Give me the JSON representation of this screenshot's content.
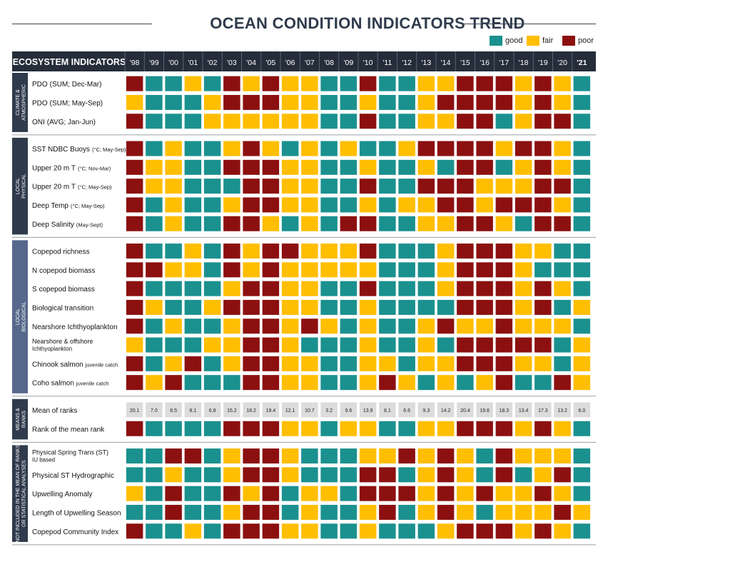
{
  "title": "OCEAN CONDITION INDICATORS TREND",
  "legend": [
    {
      "label": "good",
      "color": "#1a918f"
    },
    {
      "label": "fair",
      "color": "#ffbe00"
    },
    {
      "label": "poor",
      "color": "#8c1010"
    }
  ],
  "colors": {
    "good": "#1a918f",
    "fair": "#ffbe00",
    "poor": "#8c1010",
    "fair_light": "#ffc94d",
    "header_bg": "#252d3a",
    "group_bg": "#2f3a4c",
    "group_bg_bio": "#56698c",
    "value_bg": "#dcdcdc"
  },
  "chart_data": {
    "type": "heatmap",
    "title": "OCEAN CONDITION INDICATORS TREND",
    "header_label": "ECOSYSTEM INDICATORS",
    "years": [
      "'98",
      "'99",
      "'00",
      "'01",
      "'02",
      "'03",
      "'04",
      "'05",
      "'06",
      "'07",
      "'08",
      "'09",
      "'10",
      "'11",
      "'12",
      "'13",
      "'14",
      "'15",
      "'16",
      "'17",
      "'18",
      "'19",
      "'20",
      "'21"
    ],
    "groups": [
      {
        "label": "CLIMATE & ATMOSPHERIC",
        "rows": [
          {
            "label": "PDO",
            "note": "(SUM; Dec-Mar)",
            "note_small": false,
            "values": [
              "P",
              "G",
              "G",
              "F",
              "G",
              "P",
              "F",
              "P",
              "F",
              "F",
              "G",
              "G",
              "P",
              "G",
              "G",
              "F",
              "F",
              "P",
              "P",
              "P",
              "F",
              "P",
              "F",
              "G"
            ]
          },
          {
            "label": "PDO",
            "note": "(SUM; May-Sep)",
            "note_small": false,
            "values": [
              "F",
              "G",
              "G",
              "G",
              "F",
              "P",
              "P",
              "P",
              "F",
              "F",
              "G",
              "G",
              "F",
              "G",
              "G",
              "F",
              "P",
              "P",
              "P",
              "P",
              "F",
              "P",
              "F",
              "G"
            ]
          },
          {
            "label": "ONI",
            "note": "(AVG; Jan-Jun)",
            "note_small": false,
            "values": [
              "P",
              "G",
              "G",
              "G",
              "F",
              "F",
              "F",
              "F",
              "F",
              "F",
              "G",
              "G",
              "P",
              "G",
              "G",
              "F",
              "F",
              "P",
              "P",
              "G",
              "F",
              "P",
              "P",
              "G"
            ]
          }
        ]
      },
      {
        "label": "LOCAL PHYSICAL",
        "rows": [
          {
            "label": "SST NDBC Buoys",
            "note": "(°C; May-Sep)",
            "note_small": true,
            "values": [
              "P",
              "G",
              "F",
              "G",
              "G",
              "F",
              "P",
              "F",
              "G",
              "F",
              "G",
              "F",
              "G",
              "G",
              "F",
              "P",
              "P",
              "P",
              "P",
              "F",
              "P",
              "P",
              "F",
              "G"
            ]
          },
          {
            "label": "Upper 20 m T",
            "note": "(°C; Nov-Mar)",
            "note_small": true,
            "values": [
              "P",
              "F",
              "F",
              "G",
              "G",
              "P",
              "P",
              "P",
              "F",
              "F",
              "G",
              "G",
              "F",
              "G",
              "G",
              "F",
              "G",
              "P",
              "P",
              "G",
              "F",
              "P",
              "F",
              "G"
            ]
          },
          {
            "label": "Upper 20 m T",
            "note": "(°C; May-Sep)",
            "note_small": true,
            "values": [
              "P",
              "F",
              "F",
              "G",
              "G",
              "G",
              "P",
              "P",
              "F",
              "F",
              "G",
              "G",
              "P",
              "G",
              "G",
              "P",
              "P",
              "P",
              "F",
              "F",
              "F",
              "P",
              "P",
              "G"
            ]
          },
          {
            "label": "Deep Temp",
            "note": "(°C; May-Sep)",
            "note_small": true,
            "values": [
              "P",
              "G",
              "F",
              "G",
              "G",
              "F",
              "P",
              "P",
              "F",
              "F",
              "G",
              "G",
              "F",
              "G",
              "F",
              "F",
              "P",
              "P",
              "F",
              "P",
              "P",
              "P",
              "F",
              "G"
            ]
          },
          {
            "label": "Deep Salinity",
            "note": "(May-Sept)",
            "note_small": true,
            "values": [
              "P",
              "G",
              "F",
              "G",
              "G",
              "P",
              "P",
              "F",
              "G",
              "F",
              "G",
              "P",
              "P",
              "G",
              "G",
              "F",
              "F",
              "P",
              "P",
              "F",
              "G",
              "P",
              "P",
              "G"
            ]
          }
        ]
      },
      {
        "label": "LOCAL BIOLOGICAL",
        "rows": [
          {
            "label": "Copepod richness",
            "note": "",
            "note_small": false,
            "values": [
              "P",
              "G",
              "G",
              "F",
              "G",
              "P",
              "F",
              "P",
              "P",
              "F",
              "F",
              "F",
              "P",
              "G",
              "G",
              "G",
              "F",
              "P",
              "P",
              "P",
              "F",
              "F",
              "G",
              "G"
            ]
          },
          {
            "label": "N copepod biomass",
            "note": "",
            "note_small": false,
            "values": [
              "P",
              "P",
              "F",
              "F",
              "G",
              "P",
              "F",
              "P",
              "F",
              "F",
              "F",
              "F",
              "F",
              "G",
              "G",
              "G",
              "F",
              "P",
              "P",
              "P",
              "F",
              "G",
              "G",
              "G"
            ]
          },
          {
            "label": "S copepod biomass",
            "note": "",
            "note_small": false,
            "values": [
              "P",
              "G",
              "G",
              "G",
              "G",
              "F",
              "P",
              "P",
              "F",
              "F",
              "G",
              "G",
              "P",
              "G",
              "G",
              "G",
              "F",
              "P",
              "P",
              "P",
              "F",
              "P",
              "F",
              "G"
            ]
          },
          {
            "label": "Biological transition",
            "note": "",
            "note_small": false,
            "values": [
              "P",
              "F",
              "G",
              "G",
              "F",
              "P",
              "P",
              "P",
              "F",
              "F",
              "G",
              "G",
              "F",
              "G",
              "G",
              "G",
              "G",
              "P",
              "P",
              "P",
              "F",
              "P",
              "G",
              "F"
            ]
          },
          {
            "label": "Nearshore Ichthyoplankton",
            "note": "",
            "note_small": false,
            "values": [
              "P",
              "G",
              "F",
              "G",
              "G",
              "F",
              "P",
              "P",
              "F",
              "P",
              "F",
              "G",
              "F",
              "G",
              "G",
              "F",
              "P",
              "F",
              "F",
              "P",
              "F",
              "F",
              "F",
              "G"
            ]
          },
          {
            "label": "Nearshore & offshore",
            "note": "Ichthyoplankton",
            "note_small": true,
            "two_line": true,
            "values": [
              "F",
              "G",
              "G",
              "G",
              "F",
              "F",
              "P",
              "P",
              "F",
              "G",
              "G",
              "G",
              "F",
              "G",
              "G",
              "F",
              "G",
              "P",
              "P",
              "P",
              "P",
              "P",
              "G",
              "F"
            ]
          },
          {
            "label": "Chinook salmon",
            "note": "juvenile catch",
            "note_small": true,
            "values": [
              "P",
              "G",
              "F",
              "P",
              "G",
              "F",
              "P",
              "P",
              "F",
              "F",
              "G",
              "G",
              "F",
              "F",
              "G",
              "F",
              "F",
              "P",
              "P",
              "P",
              "F",
              "F",
              "G",
              "F"
            ]
          },
          {
            "label": "Coho salmon",
            "note": "juvenile catch",
            "note_small": true,
            "values": [
              "P",
              "F",
              "P",
              "G",
              "G",
              "G",
              "P",
              "P",
              "F",
              "F",
              "G",
              "G",
              "F",
              "P",
              "F",
              "G",
              "F",
              "G",
              "F",
              "P",
              "G",
              "G",
              "P",
              "F"
            ]
          }
        ]
      },
      {
        "label": "MEANS & RANKS",
        "rows": [
          {
            "label": "Mean of ranks",
            "note": "",
            "note_small": false,
            "numeric": [
              "20.1",
              "7.0",
              "8.5",
              "8.1",
              "6.8",
              "15.2",
              "18.2",
              "19.4",
              "12.1",
              "10.7",
              "3.2",
              "9.6",
              "13.9",
              "8.1",
              "6.6",
              "9.3",
              "14.2",
              "20.4",
              "19.8",
              "18.3",
              "13.4",
              "17.3",
              "13.2",
              "6.0"
            ]
          },
          {
            "label": "Rank of the mean rank",
            "note": "",
            "note_small": false,
            "values": [
              "P",
              "G",
              "G",
              "G",
              "G",
              "P",
              "P",
              "P",
              "F",
              "F",
              "G",
              "F",
              "F",
              "G",
              "G",
              "F",
              "F",
              "P",
              "P",
              "P",
              "F",
              "P",
              "F",
              "G"
            ]
          }
        ]
      },
      {
        "label": "NOT INCLUDED IN THE MEAN OF RANKS OR STATISTICAL ANALYSES",
        "rows": [
          {
            "label": "Physical Spring Trans (ST)",
            "note": "IU based",
            "note_small": true,
            "two_line": true,
            "values": [
              "G",
              "G",
              "P",
              "P",
              "G",
              "F",
              "P",
              "P",
              "F",
              "G",
              "G",
              "G",
              "F",
              "F",
              "P",
              "F",
              "P",
              "F",
              "G",
              "P",
              "F",
              "F",
              "F",
              "G"
            ]
          },
          {
            "label": "Physical ST Hydrographic",
            "note": "",
            "note_small": false,
            "values": [
              "G",
              "G",
              "F",
              "G",
              "G",
              "F",
              "P",
              "P",
              "F",
              "G",
              "G",
              "G",
              "P",
              "P",
              "G",
              "F",
              "P",
              "F",
              "G",
              "P",
              "G",
              "F",
              "P",
              "G"
            ]
          },
          {
            "label": "Upwelling Anomaly",
            "note": "",
            "note_small": false,
            "values": [
              "F",
              "G",
              "P",
              "G",
              "G",
              "P",
              "F",
              "P",
              "G",
              "F",
              "F",
              "G",
              "P",
              "P",
              "P",
              "F",
              "P",
              "F",
              "P",
              "F",
              "F",
              "P",
              "F",
              "G"
            ]
          },
          {
            "label": "Length of Upwelling Season",
            "note": "",
            "note_small": false,
            "values": [
              "G",
              "G",
              "P",
              "G",
              "G",
              "F",
              "P",
              "P",
              "G",
              "F",
              "G",
              "G",
              "F",
              "P",
              "G",
              "F",
              "P",
              "F",
              "G",
              "F",
              "F",
              "F",
              "P",
              "F"
            ]
          },
          {
            "label": "Copepod Community Index",
            "note": "",
            "note_small": false,
            "values": [
              "P",
              "G",
              "G",
              "F",
              "G",
              "P",
              "P",
              "P",
              "F",
              "F",
              "G",
              "G",
              "F",
              "G",
              "G",
              "G",
              "F",
              "P",
              "P",
              "P",
              "F",
              "P",
              "F",
              "G"
            ]
          }
        ]
      }
    ]
  }
}
